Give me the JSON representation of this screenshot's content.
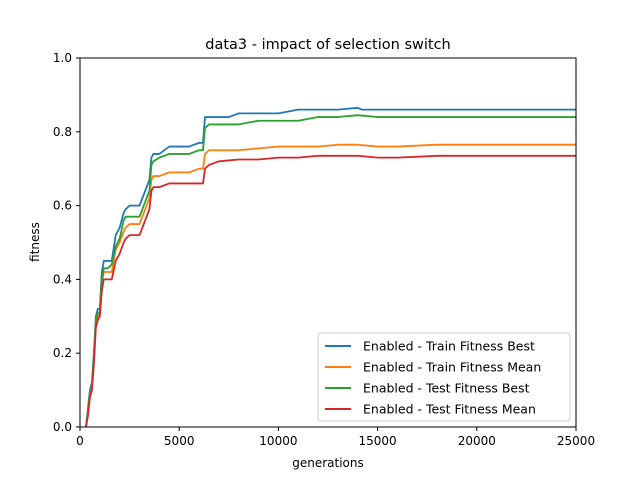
{
  "chart_data": {
    "type": "line",
    "title": "data3 - impact of selection switch",
    "xlabel": "generations",
    "ylabel": "fitness",
    "xlim": [
      0,
      25000
    ],
    "ylim": [
      0.0,
      1.0
    ],
    "xticks": [
      0,
      5000,
      10000,
      15000,
      20000,
      25000
    ],
    "xtick_labels": [
      "0",
      "5000",
      "10000",
      "15000",
      "20000",
      "25000"
    ],
    "yticks": [
      0.0,
      0.2,
      0.4,
      0.6,
      0.8,
      1.0
    ],
    "ytick_labels": [
      "0.0",
      "0.2",
      "0.4",
      "0.6",
      "0.8",
      "1.0"
    ],
    "grid": false,
    "legend_position": "bottom-right",
    "series": [
      {
        "name": "Enabled - Train Fitness Best",
        "color": "#1f77b4",
        "x": [
          300,
          400,
          500,
          600,
          700,
          800,
          900,
          1000,
          1100,
          1200,
          1300,
          1400,
          1600,
          1800,
          1900,
          2000,
          2200,
          2300,
          2500,
          3000,
          3500,
          3600,
          3700,
          4000,
          4500,
          5000,
          5500,
          6000,
          6200,
          6300,
          6500,
          7000,
          7500,
          8000,
          8500,
          9000,
          10000,
          11000,
          12000,
          13000,
          14000,
          14200,
          15000,
          20000,
          25000
        ],
        "y": [
          0.0,
          0.05,
          0.1,
          0.12,
          0.2,
          0.3,
          0.32,
          0.32,
          0.42,
          0.45,
          0.45,
          0.45,
          0.45,
          0.52,
          0.53,
          0.54,
          0.58,
          0.59,
          0.6,
          0.6,
          0.67,
          0.73,
          0.74,
          0.74,
          0.76,
          0.76,
          0.76,
          0.77,
          0.77,
          0.84,
          0.84,
          0.84,
          0.84,
          0.85,
          0.85,
          0.85,
          0.85,
          0.86,
          0.86,
          0.86,
          0.865,
          0.86,
          0.86,
          0.86,
          0.86
        ]
      },
      {
        "name": "Enabled - Train Fitness Mean",
        "color": "#ff7f0e",
        "x": [
          300,
          400,
          500,
          600,
          700,
          800,
          900,
          1000,
          1100,
          1200,
          1400,
          1600,
          1800,
          2000,
          2200,
          2300,
          2500,
          3000,
          3500,
          3600,
          3700,
          4000,
          4500,
          5000,
          5500,
          6000,
          6200,
          6300,
          6500,
          7000,
          8000,
          9000,
          10000,
          11000,
          12000,
          13000,
          14000,
          15000,
          16000,
          18000,
          20000,
          22000,
          25000
        ],
        "y": [
          0.0,
          0.04,
          0.09,
          0.11,
          0.18,
          0.28,
          0.3,
          0.31,
          0.39,
          0.42,
          0.42,
          0.42,
          0.48,
          0.5,
          0.53,
          0.54,
          0.55,
          0.55,
          0.62,
          0.67,
          0.68,
          0.68,
          0.69,
          0.69,
          0.69,
          0.7,
          0.7,
          0.74,
          0.75,
          0.75,
          0.75,
          0.755,
          0.76,
          0.76,
          0.76,
          0.765,
          0.765,
          0.76,
          0.76,
          0.765,
          0.765,
          0.765,
          0.765
        ]
      },
      {
        "name": "Enabled - Test Fitness Best",
        "color": "#2ca02c",
        "x": [
          300,
          400,
          500,
          600,
          700,
          800,
          900,
          1000,
          1100,
          1200,
          1400,
          1600,
          1800,
          2000,
          2200,
          2300,
          2500,
          3000,
          3500,
          3600,
          3700,
          4000,
          4500,
          5000,
          5500,
          6000,
          6200,
          6300,
          6500,
          7000,
          8000,
          9000,
          10000,
          11000,
          12000,
          13000,
          14000,
          15000,
          20000,
          25000
        ],
        "y": [
          0.0,
          0.04,
          0.09,
          0.11,
          0.19,
          0.29,
          0.31,
          0.31,
          0.4,
          0.43,
          0.43,
          0.44,
          0.49,
          0.51,
          0.56,
          0.57,
          0.57,
          0.57,
          0.64,
          0.71,
          0.72,
          0.73,
          0.74,
          0.74,
          0.74,
          0.75,
          0.75,
          0.81,
          0.82,
          0.82,
          0.82,
          0.83,
          0.83,
          0.83,
          0.84,
          0.84,
          0.845,
          0.84,
          0.84,
          0.84
        ]
      },
      {
        "name": "Enabled - Test Fitness Mean",
        "color": "#d62728",
        "x": [
          300,
          400,
          500,
          600,
          700,
          800,
          900,
          1000,
          1100,
          1200,
          1400,
          1600,
          1800,
          2000,
          2200,
          2300,
          2500,
          3000,
          3500,
          3600,
          3700,
          4000,
          4500,
          5000,
          5500,
          6000,
          6200,
          6300,
          6500,
          7000,
          8000,
          9000,
          10000,
          11000,
          12000,
          13000,
          14000,
          15000,
          16000,
          18000,
          20000,
          22000,
          25000
        ],
        "y": [
          0.0,
          0.03,
          0.08,
          0.1,
          0.17,
          0.27,
          0.29,
          0.3,
          0.37,
          0.4,
          0.4,
          0.4,
          0.45,
          0.47,
          0.5,
          0.51,
          0.52,
          0.52,
          0.59,
          0.64,
          0.65,
          0.65,
          0.66,
          0.66,
          0.66,
          0.66,
          0.66,
          0.7,
          0.71,
          0.72,
          0.725,
          0.725,
          0.73,
          0.73,
          0.735,
          0.735,
          0.735,
          0.73,
          0.73,
          0.735,
          0.735,
          0.735,
          0.735
        ]
      }
    ]
  }
}
